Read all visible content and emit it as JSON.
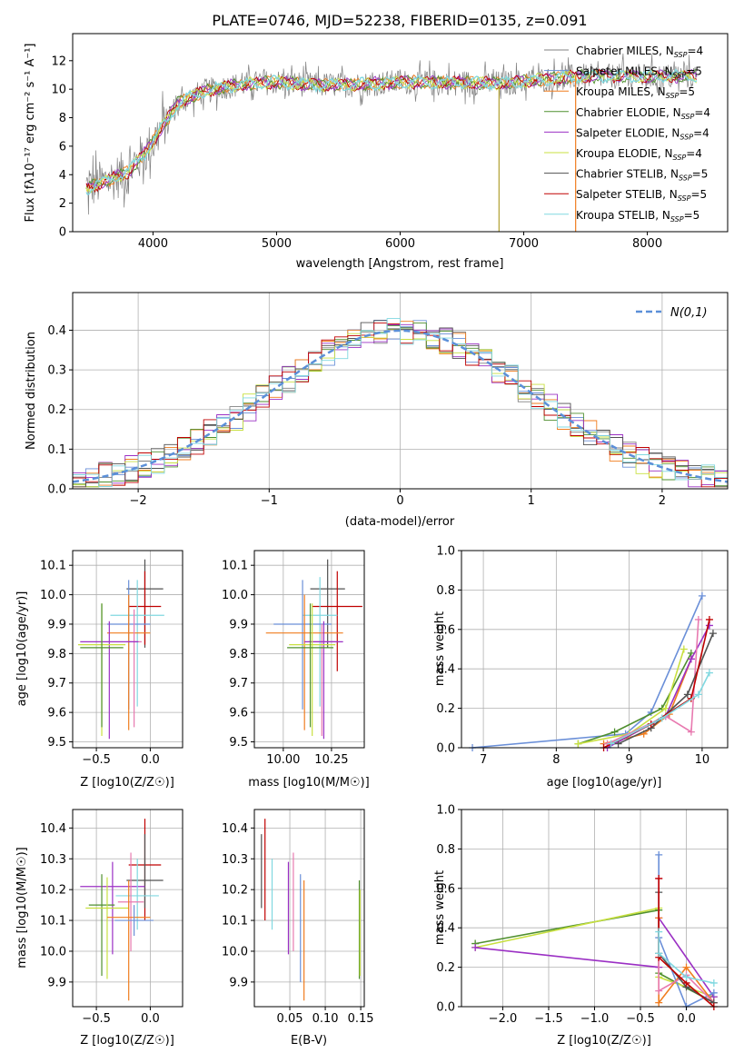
{
  "figure": {
    "colors": {
      "Chabrier MILES": "#808080",
      "Salpeter MILES": "#6a8fd8",
      "Kroupa MILES": "#f07d1f",
      "Chabrier ELODIE": "#4f8f2e",
      "Salpeter ELODIE": "#9b30c4",
      "Kroupa ELODIE": "#c8e040",
      "Chabrier STELIB": "#505050",
      "Salpeter STELIB": "#c00000",
      "Kroupa STELIB": "#80d8e0",
      "pink": "#e87ab0"
    }
  },
  "chart_data": [
    {
      "type": "line",
      "title": "PLATE=0746, MJD=52238, FIBERID=0135, z=0.091",
      "xlabel": "wavelength [Angstrom, rest frame]",
      "ylabel": "Flux [fλ10⁻¹⁷ erg cm⁻² s⁻¹ A⁻¹]",
      "xlim": [
        3350,
        8650
      ],
      "ylim": [
        0,
        13.9
      ],
      "xticks": [
        4000,
        5000,
        6000,
        7000,
        8000
      ],
      "yticks": [
        0,
        2,
        4,
        6,
        8,
        10,
        12
      ],
      "legend": "top-right",
      "legend_entries": [
        "Chabrier MILES, N_SSP=4",
        "Salpeter MILES, N_SSP=5",
        "Kroupa MILES, N_SSP=5",
        "Chabrier ELODIE, N_SSP=4",
        "Salpeter ELODIE, N_SSP=4",
        "Kroupa ELODIE, N_SSP=4",
        "Chabrier STELIB, N_SSP=5",
        "Salpeter STELIB, N_SSP=5",
        "Kroupa STELIB, N_SSP=5"
      ],
      "continuum": {
        "x": [
          3450,
          3600,
          3800,
          3950,
          4050,
          4200,
          4400,
          4600,
          4800,
          5000,
          5300,
          5600,
          6000,
          6400,
          6800,
          7200,
          7450
        ],
        "y": [
          3.0,
          3.5,
          4.2,
          5.7,
          7.0,
          9.0,
          9.8,
          10.2,
          10.4,
          10.5,
          10.3,
          10.3,
          10.5,
          10.5,
          10.4,
          10.7,
          10.9
        ]
      }
    },
    {
      "type": "bar",
      "xlabel": "(data-model)/error",
      "ylabel": "Normed distribution",
      "xlim": [
        -2.5,
        2.5
      ],
      "ylim": [
        0,
        0.495
      ],
      "xticks": [
        -2,
        -1,
        0,
        1,
        2
      ],
      "yticks": [
        0.0,
        0.1,
        0.2,
        0.3,
        0.4
      ],
      "grid": true,
      "legend": "top-right",
      "legend_entries": [
        "N(0,1)"
      ]
    },
    {
      "type": "scatter",
      "panel": "Z-age",
      "xlabel": "Z [log10(Z/Z☉)]",
      "ylabel": "age  [log10(age/yr)]",
      "xlim": [
        -0.72,
        0.3
      ],
      "ylim": [
        9.48,
        10.15
      ],
      "xticks": [
        -0.5,
        0.0
      ],
      "yticks": [
        9.5,
        9.6,
        9.7,
        9.8,
        9.9,
        10.0,
        10.1
      ],
      "grid": true,
      "points": [
        {
          "x": -0.05,
          "y": 10.02,
          "xerr": 0.17,
          "ymin": 9.82,
          "ymax": 10.12,
          "series": "Chabrier STELIB"
        },
        {
          "x": -0.05,
          "y": 9.96,
          "xerr": 0.15,
          "ymin": 9.83,
          "ymax": 10.08,
          "series": "Salpeter STELIB"
        },
        {
          "x": -0.12,
          "y": 9.93,
          "xerr": 0.25,
          "ymin": 9.62,
          "ymax": 10.05,
          "series": "Kroupa STELIB"
        },
        {
          "x": -0.2,
          "y": 9.9,
          "xerr": 0.2,
          "ymin": 9.61,
          "ymax": 10.05,
          "series": "Salpeter MILES"
        },
        {
          "x": -0.2,
          "y": 9.87,
          "xerr": 0.2,
          "ymin": 9.54,
          "ymax": 10.0,
          "series": "Kroupa MILES"
        },
        {
          "x": -0.15,
          "y": 9.84,
          "xerr": 0.07,
          "ymin": 9.55,
          "ymax": 9.95,
          "series": "pink"
        },
        {
          "x": -0.38,
          "y": 9.84,
          "xerr": 0.27,
          "ymin": 9.51,
          "ymax": 9.91,
          "series": "Salpeter ELODIE"
        },
        {
          "x": -0.45,
          "y": 9.83,
          "xerr": 0.22,
          "ymin": 9.52,
          "ymax": 9.97,
          "series": "Kroupa ELODIE"
        },
        {
          "x": -0.45,
          "y": 9.82,
          "xerr": 0.2,
          "ymin": 9.55,
          "ymax": 9.97,
          "series": "Chabrier ELODIE"
        }
      ]
    },
    {
      "type": "scatter",
      "panel": "mass-age",
      "xlabel": "mass [log10(M/M☉)]",
      "ylabel": "",
      "xlim": [
        9.85,
        10.42
      ],
      "ylim": [
        9.48,
        10.15
      ],
      "xticks": [
        10.0,
        10.25
      ],
      "yticks": [
        9.5,
        9.6,
        9.7,
        9.8,
        9.9,
        10.0,
        10.1
      ],
      "grid": true,
      "points": [
        {
          "x": 10.23,
          "y": 10.02,
          "xerr": 0.09,
          "ymin": 9.82,
          "ymax": 10.12,
          "series": "Chabrier STELIB"
        },
        {
          "x": 10.28,
          "y": 9.96,
          "xerr": 0.13,
          "ymin": 9.74,
          "ymax": 10.08,
          "series": "Salpeter STELIB"
        },
        {
          "x": 10.19,
          "y": 9.93,
          "xerr": 0.09,
          "ymin": 9.62,
          "ymax": 10.06,
          "series": "Kroupa STELIB"
        },
        {
          "x": 10.1,
          "y": 9.9,
          "xerr": 0.15,
          "ymin": 9.61,
          "ymax": 10.05,
          "series": "Salpeter MILES"
        },
        {
          "x": 10.11,
          "y": 9.87,
          "xerr": 0.2,
          "ymin": 9.54,
          "ymax": 10.0,
          "series": "Kroupa MILES"
        },
        {
          "x": 10.2,
          "y": 9.84,
          "xerr": 0.07,
          "ymin": 9.52,
          "ymax": 9.9,
          "series": "pink"
        },
        {
          "x": 10.21,
          "y": 9.84,
          "xerr": 0.1,
          "ymin": 9.51,
          "ymax": 9.91,
          "series": "Salpeter ELODIE"
        },
        {
          "x": 10.15,
          "y": 9.83,
          "xerr": 0.12,
          "ymin": 9.52,
          "ymax": 9.97,
          "series": "Kroupa ELODIE"
        },
        {
          "x": 10.14,
          "y": 9.82,
          "xerr": 0.12,
          "ymin": 9.55,
          "ymax": 9.97,
          "series": "Chabrier ELODIE"
        }
      ]
    },
    {
      "type": "line",
      "panel": "age-weight",
      "xlabel": "age  [log10(age/yr)]",
      "ylabel": "mass weight",
      "xlim": [
        6.7,
        10.35
      ],
      "ylim": [
        0,
        1.0
      ],
      "xticks": [
        7,
        8,
        9,
        10
      ],
      "yticks": [
        0.0,
        0.2,
        0.4,
        0.6,
        0.8,
        1.0
      ],
      "grid": true,
      "series": [
        {
          "series": "Salpeter MILES",
          "x": [
            6.85,
            8.95,
            9.3,
            10.0
          ],
          "y": [
            0.0,
            0.07,
            0.18,
            0.77
          ]
        },
        {
          "series": "Kroupa MILES",
          "x": [
            8.65,
            9.2,
            9.55,
            9.85
          ],
          "y": [
            0.02,
            0.07,
            0.17,
            0.45
          ]
        },
        {
          "series": "Chabrier ELODIE",
          "x": [
            8.3,
            8.8,
            9.45,
            9.85
          ],
          "y": [
            0.02,
            0.08,
            0.2,
            0.48
          ]
        },
        {
          "series": "Kroupa ELODIE",
          "x": [
            8.3,
            9.0,
            9.5,
            9.75
          ],
          "y": [
            0.02,
            0.07,
            0.2,
            0.5
          ]
        },
        {
          "series": "Salpeter ELODIE",
          "x": [
            8.7,
            9.5,
            9.85,
            10.1
          ],
          "y": [
            0.0,
            0.16,
            0.45,
            0.62
          ]
        },
        {
          "series": "pink",
          "x": [
            8.7,
            9.5,
            9.85,
            9.95
          ],
          "y": [
            0.02,
            0.16,
            0.08,
            0.65
          ]
        },
        {
          "series": "Chabrier STELIB",
          "x": [
            8.85,
            9.3,
            9.8,
            10.15
          ],
          "y": [
            0.02,
            0.1,
            0.27,
            0.58
          ]
        },
        {
          "series": "Salpeter STELIB",
          "x": [
            8.65,
            9.3,
            9.85,
            10.1
          ],
          "y": [
            0.0,
            0.12,
            0.25,
            0.65
          ]
        },
        {
          "series": "Kroupa STELIB",
          "x": [
            8.75,
            9.45,
            9.95,
            10.1
          ],
          "y": [
            0.02,
            0.15,
            0.27,
            0.38
          ]
        }
      ]
    },
    {
      "type": "scatter",
      "panel": "Z-mass",
      "xlabel": "Z [log10(Z/Z☉)]",
      "ylabel": "mass [log10(M/M☉)]",
      "xlim": [
        -0.72,
        0.3
      ],
      "ylim": [
        9.82,
        10.46
      ],
      "xticks": [
        -0.5,
        0.0
      ],
      "yticks": [
        9.9,
        10.0,
        10.1,
        10.2,
        10.3,
        10.4
      ],
      "grid": true,
      "points": [
        {
          "x": -0.05,
          "y": 10.28,
          "xerr": 0.15,
          "ymin": 10.1,
          "ymax": 10.43,
          "series": "Salpeter STELIB"
        },
        {
          "x": -0.05,
          "y": 10.23,
          "xerr": 0.17,
          "ymin": 10.14,
          "ymax": 10.38,
          "series": "Chabrier STELIB"
        },
        {
          "x": -0.35,
          "y": 10.21,
          "xerr": 0.3,
          "ymin": 9.99,
          "ymax": 10.29,
          "series": "Salpeter ELODIE"
        },
        {
          "x": -0.12,
          "y": 10.18,
          "xerr": 0.2,
          "ymin": 10.07,
          "ymax": 10.3,
          "series": "Kroupa STELIB"
        },
        {
          "x": -0.18,
          "y": 10.16,
          "xerr": 0.12,
          "ymin": 10.0,
          "ymax": 10.32,
          "series": "pink"
        },
        {
          "x": -0.45,
          "y": 10.15,
          "xerr": 0.12,
          "ymin": 9.92,
          "ymax": 10.25,
          "series": "Chabrier ELODIE"
        },
        {
          "x": -0.4,
          "y": 10.14,
          "xerr": 0.2,
          "ymin": 9.91,
          "ymax": 10.24,
          "series": "Kroupa ELODIE"
        },
        {
          "x": -0.2,
          "y": 10.11,
          "xerr": 0.2,
          "ymin": 9.84,
          "ymax": 10.23,
          "series": "Kroupa MILES"
        },
        {
          "x": -0.15,
          "y": 10.1,
          "xerr": 0.18,
          "ymin": 10.05,
          "ymax": 10.15,
          "series": "Salpeter MILES"
        }
      ]
    },
    {
      "type": "scatter",
      "panel": "EBV-mass",
      "xlabel": "E(B-V)",
      "ylabel": "",
      "xlim": [
        0.0,
        0.155
      ],
      "ylim": [
        9.82,
        10.46
      ],
      "xticks": [
        0.05,
        0.1,
        0.15
      ],
      "yticks": [
        9.9,
        10.0,
        10.1,
        10.2,
        10.3,
        10.4
      ],
      "grid": true,
      "points": [
        {
          "x": 0.015,
          "ymin": 10.1,
          "ymax": 10.43,
          "series": "Salpeter STELIB"
        },
        {
          "x": 0.01,
          "ymin": 10.14,
          "ymax": 10.38,
          "series": "Chabrier STELIB"
        },
        {
          "x": 0.048,
          "ymin": 9.99,
          "ymax": 10.29,
          "series": "Salpeter ELODIE"
        },
        {
          "x": 0.025,
          "ymin": 10.07,
          "ymax": 10.3,
          "series": "Kroupa STELIB"
        },
        {
          "x": 0.055,
          "ymin": 10.0,
          "ymax": 10.32,
          "series": "pink"
        },
        {
          "x": 0.065,
          "ymin": 9.9,
          "ymax": 10.25,
          "series": "Salpeter MILES"
        },
        {
          "x": 0.07,
          "ymin": 9.84,
          "ymax": 10.23,
          "series": "Kroupa MILES"
        },
        {
          "x": 0.148,
          "ymin": 9.91,
          "ymax": 10.23,
          "series": "Chabrier ELODIE"
        },
        {
          "x": 0.149,
          "ymin": 9.92,
          "ymax": 10.2,
          "series": "Kroupa ELODIE"
        }
      ]
    },
    {
      "type": "line",
      "panel": "Z-weight",
      "xlabel": "Z [log10(Z/Z☉)]",
      "ylabel": "mass weight",
      "xlim": [
        -2.45,
        0.45
      ],
      "ylim": [
        0,
        1.0
      ],
      "xticks": [
        -2.0,
        -1.5,
        -1.0,
        -0.5,
        0.0
      ],
      "yticks": [
        0.0,
        0.2,
        0.4,
        0.6,
        0.8,
        1.0
      ],
      "grid": true,
      "series": [
        {
          "series": "Chabrier ELODIE",
          "x": [
            -2.3,
            -0.3,
            -0.3,
            0.3
          ],
          "y": [
            0.32,
            0.49,
            0.17,
            0.02
          ]
        },
        {
          "series": "Kroupa ELODIE",
          "x": [
            -2.3,
            -0.3,
            -0.3,
            0.3
          ],
          "y": [
            0.3,
            0.5,
            0.15,
            0.05
          ]
        },
        {
          "series": "Salpeter ELODIE",
          "x": [
            -2.3,
            -0.3,
            -0.3,
            0.3
          ],
          "y": [
            0.3,
            0.2,
            0.45,
            0.05
          ]
        },
        {
          "series": "Salpeter MILES",
          "x": [
            -0.3,
            -0.3,
            0.0,
            0.3
          ],
          "y": [
            0.77,
            0.35,
            0.0,
            0.07
          ]
        },
        {
          "series": "Kroupa MILES",
          "x": [
            -0.3,
            -0.3,
            0.0,
            0.3
          ],
          "y": [
            0.45,
            0.02,
            0.2,
            0.02
          ]
        },
        {
          "series": "pink",
          "x": [
            -0.3,
            -0.3,
            0.0,
            0.3
          ],
          "y": [
            0.65,
            0.08,
            0.16,
            0.02
          ]
        },
        {
          "series": "Chabrier STELIB",
          "x": [
            -0.3,
            -0.3,
            0.0,
            0.3
          ],
          "y": [
            0.58,
            0.27,
            0.1,
            0.02
          ]
        },
        {
          "series": "Salpeter STELIB",
          "x": [
            -0.3,
            -0.3,
            0.0,
            0.3
          ],
          "y": [
            0.65,
            0.25,
            0.12,
            0.0
          ]
        },
        {
          "series": "Kroupa STELIB",
          "x": [
            -0.3,
            -0.3,
            0.0,
            0.3
          ],
          "y": [
            0.38,
            0.27,
            0.15,
            0.12
          ]
        }
      ]
    }
  ]
}
